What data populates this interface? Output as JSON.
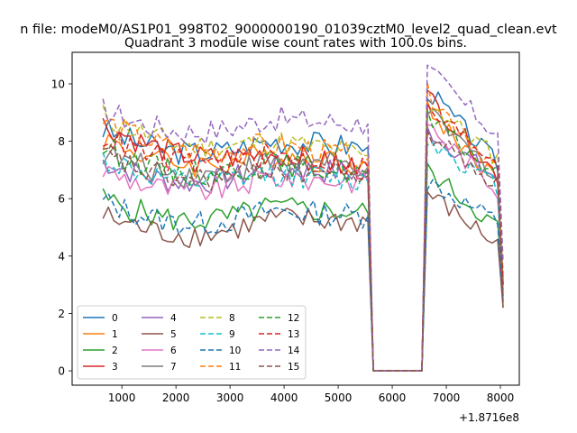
{
  "chart_data": {
    "type": "line",
    "suptitle": "n file: modeM0/AS1P01_998T02_9000000190_01039cztM0_level2_quad_clean.evt",
    "title": "Quadrant 3 module wise count rates with 100.0s bins.",
    "xlabel": "",
    "ylabel": "",
    "x_offset_label": "+1.8716e8",
    "xlim": [
      80,
      8350
    ],
    "ylim": [
      -0.5,
      11.1
    ],
    "xticks": [
      1000,
      2000,
      3000,
      4000,
      5000,
      6000,
      7000,
      8000
    ],
    "yticks": [
      0,
      2,
      4,
      6,
      8,
      10
    ],
    "legend_loc": "lower left",
    "x": [
      650,
      750,
      850,
      950,
      1050,
      1150,
      1250,
      1350,
      1450,
      1550,
      1650,
      1750,
      1850,
      1950,
      2050,
      2150,
      2250,
      2350,
      2450,
      2550,
      2650,
      2750,
      2850,
      2950,
      3050,
      3150,
      3250,
      3350,
      3450,
      3550,
      3650,
      3750,
      3850,
      3950,
      4050,
      4150,
      4250,
      4350,
      4450,
      4550,
      4650,
      4750,
      4850,
      4950,
      5050,
      5150,
      5250,
      5350,
      5450,
      5550,
      5650,
      5750,
      5850,
      5950,
      6050,
      6150,
      6250,
      6350,
      6450,
      6550,
      6650,
      6750,
      6850,
      6950,
      7050,
      7150,
      7250,
      7350,
      7450,
      7550,
      7650,
      7750,
      7850,
      7950,
      8050
    ],
    "gap": {
      "start": 5650,
      "end": 6550,
      "value": 0
    },
    "series": [
      {
        "name": "0",
        "color": "#1f77b4",
        "dash": "solid",
        "start": 8.4,
        "end": 7.8,
        "after_start": 9.8,
        "after_end": 7.2,
        "tail": 2.6
      },
      {
        "name": "1",
        "color": "#ff7f0e",
        "dash": "solid",
        "start": 8.1,
        "end": 7.2,
        "after_start": 9.1,
        "after_end": 6.6,
        "tail": 3.2
      },
      {
        "name": "2",
        "color": "#2ca02c",
        "dash": "solid",
        "start": 6.0,
        "end": 5.5,
        "after_start": 7.0,
        "after_end": 5.0,
        "tail": 2.8
      },
      {
        "name": "3",
        "color": "#d62728",
        "dash": "solid",
        "start": 8.6,
        "end": 7.0,
        "after_start": 9.6,
        "after_end": 6.8,
        "tail": 2.2
      },
      {
        "name": "4",
        "color": "#9467bd",
        "dash": "solid",
        "start": 7.3,
        "end": 6.9,
        "after_start": 8.4,
        "after_end": 6.7,
        "tail": 3.0
      },
      {
        "name": "5",
        "color": "#8c564b",
        "dash": "solid",
        "start": 5.4,
        "end": 5.2,
        "after_start": 6.2,
        "after_end": 4.4,
        "tail": 2.2
      },
      {
        "name": "6",
        "color": "#e377c2",
        "dash": "solid",
        "start": 7.0,
        "end": 6.6,
        "after_start": 8.6,
        "after_end": 6.3,
        "tail": 3.0
      },
      {
        "name": "7",
        "color": "#7f7f7f",
        "dash": "solid",
        "start": 7.6,
        "end": 7.1,
        "after_start": 9.0,
        "after_end": 6.8,
        "tail": 3.0
      },
      {
        "name": "8",
        "color": "#bcbd22",
        "dash": "dashed",
        "start": 8.9,
        "end": 7.5,
        "after_start": 9.4,
        "after_end": 7.4,
        "tail": 3.4
      },
      {
        "name": "9",
        "color": "#17becf",
        "dash": "dashed",
        "start": 7.4,
        "end": 6.6,
        "after_start": 8.1,
        "after_end": 6.4,
        "tail": 3.0
      },
      {
        "name": "10",
        "color": "#1f77b4",
        "dash": "dashed",
        "start": 5.9,
        "end": 5.4,
        "after_start": 6.6,
        "after_end": 5.2,
        "tail": 2.4
      },
      {
        "name": "11",
        "color": "#ff7f0e",
        "dash": "dashed",
        "start": 8.7,
        "end": 7.4,
        "after_start": 9.7,
        "after_end": 7.0,
        "tail": 3.2
      },
      {
        "name": "12",
        "color": "#2ca02c",
        "dash": "dashed",
        "start": 7.8,
        "end": 6.9,
        "after_start": 8.8,
        "after_end": 6.8,
        "tail": 3.2
      },
      {
        "name": "13",
        "color": "#d62728",
        "dash": "dashed",
        "start": 8.2,
        "end": 7.1,
        "after_start": 9.1,
        "after_end": 7.3,
        "tail": 3.0
      },
      {
        "name": "14",
        "color": "#9467bd",
        "dash": "dashed",
        "start": 9.1,
        "end": 8.6,
        "after_start": 10.5,
        "after_end": 8.2,
        "tail": 3.8
      },
      {
        "name": "15",
        "color": "#8c564b",
        "dash": "dashed",
        "start": 7.5,
        "end": 6.8,
        "after_start": 8.3,
        "after_end": 6.5,
        "tail": 2.4
      }
    ]
  }
}
